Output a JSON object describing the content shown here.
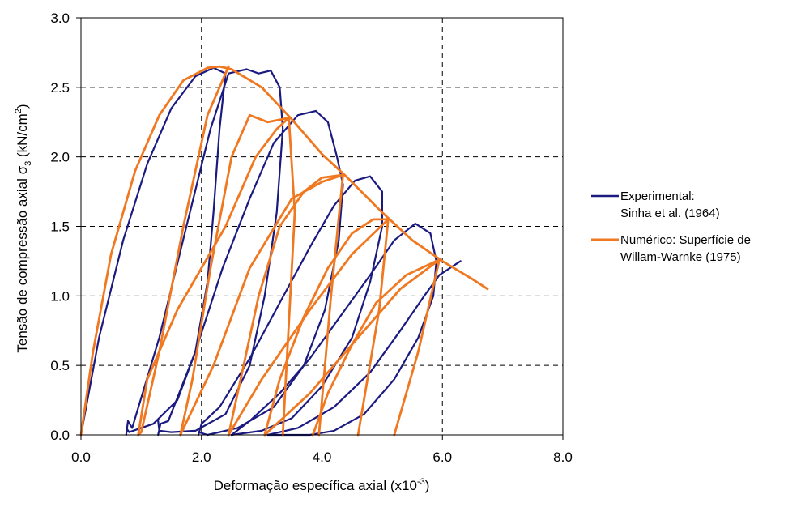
{
  "chart_data": {
    "type": "line",
    "xlabel": {
      "main": "Deformação específica axial (x10",
      "sup": "-3",
      "tail": ")"
    },
    "ylabel": {
      "main": "Tensão de compressão axial   σ",
      "sub": "3",
      "mid": " (kN/cm",
      "sup": "2",
      "tail": ")"
    },
    "xlim": [
      0,
      8
    ],
    "ylim": [
      0,
      3
    ],
    "x_ticks": [
      "0.0",
      "2.0",
      "4.0",
      "6.0",
      "8.0"
    ],
    "y_ticks": [
      "0.0",
      "0.5",
      "1.0",
      "1.5",
      "2.0",
      "2.5",
      "3.0"
    ],
    "grid": "dashed",
    "legend_position": "right",
    "series": [
      {
        "name": "Experimental: Sinha et al. (1964)",
        "legend_lines": [
          "Experimental:",
          "Sinha et al. (1964)"
        ],
        "color": "#1a1a80",
        "curves": [
          [
            [
              0,
              0
            ],
            [
              0.3,
              0.7
            ],
            [
              0.7,
              1.4
            ],
            [
              1.1,
              1.95
            ],
            [
              1.5,
              2.35
            ],
            [
              1.9,
              2.58
            ],
            [
              2.2,
              2.64
            ],
            [
              2.4,
              2.6
            ],
            [
              2.3,
              2.2
            ],
            [
              2.2,
              1.6
            ],
            [
              2.1,
              1.1
            ],
            [
              1.9,
              0.6
            ],
            [
              1.6,
              0.25
            ],
            [
              1.2,
              0.08
            ],
            [
              0.8,
              0.02
            ],
            [
              0.75,
              0.05
            ]
          ],
          [
            [
              0.75,
              0
            ],
            [
              0.78,
              0.1
            ],
            [
              0.85,
              0.05
            ],
            [
              1.3,
              0.7
            ],
            [
              1.75,
              1.5
            ],
            [
              2.15,
              2.2
            ],
            [
              2.45,
              2.6
            ],
            [
              2.75,
              2.63
            ],
            [
              2.95,
              2.6
            ],
            [
              3.15,
              2.62
            ],
            [
              3.3,
              2.5
            ],
            [
              3.35,
              2.2
            ],
            [
              3.25,
              1.6
            ],
            [
              3.05,
              1.0
            ],
            [
              2.8,
              0.5
            ],
            [
              2.4,
              0.15
            ],
            [
              1.9,
              0.03
            ],
            [
              1.5,
              0.02
            ],
            [
              1.3,
              0.03
            ],
            [
              1.28,
              0.1
            ]
          ],
          [
            [
              1.28,
              0
            ],
            [
              1.32,
              0.08
            ],
            [
              1.45,
              0.1
            ],
            [
              1.9,
              0.6
            ],
            [
              2.35,
              1.2
            ],
            [
              2.8,
              1.7
            ],
            [
              3.2,
              2.1
            ],
            [
              3.6,
              2.3
            ],
            [
              3.9,
              2.33
            ],
            [
              4.1,
              2.25
            ],
            [
              4.25,
              2.0
            ],
            [
              4.35,
              1.8
            ],
            [
              4.28,
              1.4
            ],
            [
              4.05,
              0.9
            ],
            [
              3.7,
              0.5
            ],
            [
              3.2,
              0.2
            ],
            [
              2.6,
              0.05
            ],
            [
              2.1,
              0.0
            ],
            [
              1.95,
              0.02
            ]
          ],
          [
            [
              1.95,
              0
            ],
            [
              2.0,
              0.08
            ],
            [
              2.3,
              0.2
            ],
            [
              2.8,
              0.55
            ],
            [
              3.3,
              0.95
            ],
            [
              3.8,
              1.35
            ],
            [
              4.2,
              1.65
            ],
            [
              4.55,
              1.83
            ],
            [
              4.8,
              1.86
            ],
            [
              5.0,
              1.75
            ],
            [
              5.0,
              1.5
            ],
            [
              4.8,
              1.1
            ],
            [
              4.5,
              0.7
            ],
            [
              4.0,
              0.35
            ],
            [
              3.5,
              0.12
            ],
            [
              3.0,
              0.03
            ],
            [
              2.5,
              0.0
            ]
          ],
          [
            [
              2.5,
              0
            ],
            [
              2.8,
              0.1
            ],
            [
              3.3,
              0.3
            ],
            [
              3.8,
              0.55
            ],
            [
              4.3,
              0.85
            ],
            [
              4.8,
              1.15
            ],
            [
              5.2,
              1.4
            ],
            [
              5.55,
              1.52
            ],
            [
              5.8,
              1.45
            ],
            [
              5.9,
              1.25
            ],
            [
              5.85,
              1.0
            ],
            [
              5.6,
              0.7
            ],
            [
              5.2,
              0.4
            ],
            [
              4.7,
              0.15
            ],
            [
              4.2,
              0.03
            ],
            [
              3.8,
              0.0
            ],
            [
              3.1,
              0.0
            ]
          ],
          [
            [
              3.1,
              0.0
            ],
            [
              3.6,
              0.05
            ],
            [
              4.2,
              0.2
            ],
            [
              4.8,
              0.45
            ],
            [
              5.3,
              0.75
            ],
            [
              5.7,
              1.0
            ],
            [
              5.95,
              1.15
            ],
            [
              6.3,
              1.25
            ]
          ]
        ]
      },
      {
        "name": "Numérico: Superfície de Willam-Warnke (1975)",
        "legend_lines": [
          "Numérico: Superfície de",
          "Willam-Warnke (1975)"
        ],
        "color": "#f07820",
        "curves": [
          [
            [
              0,
              0
            ],
            [
              0.2,
              0.6
            ],
            [
              0.5,
              1.3
            ],
            [
              0.9,
              1.9
            ],
            [
              1.3,
              2.3
            ],
            [
              1.7,
              2.55
            ],
            [
              2.1,
              2.64
            ],
            [
              2.3,
              2.65
            ],
            [
              2.5,
              2.63
            ],
            [
              3.0,
              2.5
            ],
            [
              3.5,
              2.27
            ],
            [
              4.0,
              2.02
            ],
            [
              4.4,
              1.86
            ],
            [
              5.0,
              1.6
            ],
            [
              5.5,
              1.4
            ],
            [
              6.0,
              1.25
            ],
            [
              6.5,
              1.12
            ],
            [
              6.75,
              1.05
            ]
          ],
          [
            [
              0.95,
              0.0
            ],
            [
              1.0,
              0.02
            ],
            [
              1.3,
              0.6
            ],
            [
              1.7,
              1.5
            ],
            [
              2.1,
              2.3
            ],
            [
              2.45,
              2.65
            ]
          ],
          [
            [
              1.65,
              0.0
            ],
            [
              1.85,
              0.4
            ],
            [
              2.15,
              1.2
            ],
            [
              2.5,
              2.0
            ],
            [
              2.8,
              2.3
            ],
            [
              3.1,
              2.25
            ],
            [
              3.45,
              2.28
            ]
          ],
          [
            [
              2.45,
              0.0
            ],
            [
              2.65,
              0.4
            ],
            [
              2.95,
              1.0
            ],
            [
              3.3,
              1.5
            ],
            [
              3.7,
              1.75
            ],
            [
              4.0,
              1.85
            ],
            [
              4.35,
              1.87
            ]
          ],
          [
            [
              3.05,
              0.0
            ],
            [
              3.3,
              0.4
            ],
            [
              3.7,
              0.85
            ],
            [
              4.1,
              1.2
            ],
            [
              4.5,
              1.45
            ],
            [
              4.85,
              1.55
            ],
            [
              5.1,
              1.55
            ]
          ],
          [
            [
              3.85,
              0.0
            ],
            [
              4.1,
              0.3
            ],
            [
              4.5,
              0.65
            ],
            [
              4.9,
              0.95
            ],
            [
              5.4,
              1.15
            ],
            [
              5.95,
              1.26
            ]
          ],
          [
            [
              0.95,
              0.0
            ],
            [
              1.1,
              0.4
            ],
            [
              1.6,
              0.9
            ],
            [
              2.4,
              1.5
            ],
            [
              2.9,
              2.0
            ],
            [
              3.25,
              2.2
            ],
            [
              3.45,
              2.28
            ],
            [
              3.55,
              1.6
            ],
            [
              3.35,
              0.0
            ]
          ],
          [
            [
              1.65,
              0.0
            ],
            [
              2.2,
              0.5
            ],
            [
              2.8,
              1.2
            ],
            [
              3.5,
              1.7
            ],
            [
              4.0,
              1.82
            ],
            [
              4.35,
              1.87
            ],
            [
              4.15,
              1.0
            ],
            [
              3.95,
              0.0
            ]
          ],
          [
            [
              2.45,
              0.0
            ],
            [
              3.0,
              0.4
            ],
            [
              3.8,
              0.9
            ],
            [
              4.5,
              1.3
            ],
            [
              5.1,
              1.55
            ],
            [
              4.95,
              0.9
            ],
            [
              4.6,
              0.0
            ]
          ],
          [
            [
              3.05,
              0.0
            ],
            [
              3.8,
              0.3
            ],
            [
              4.6,
              0.7
            ],
            [
              5.3,
              1.05
            ],
            [
              5.95,
              1.26
            ],
            [
              5.6,
              0.6
            ],
            [
              5.2,
              0.0
            ]
          ]
        ]
      }
    ]
  }
}
